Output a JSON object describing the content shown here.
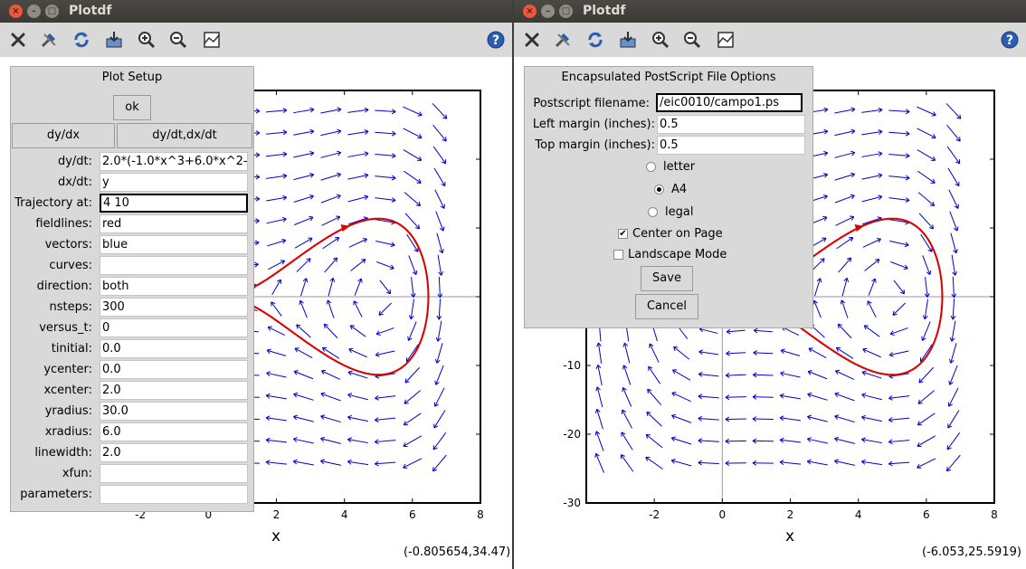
{
  "left_window": {
    "title": "Plotdf",
    "coords": "(-0.805654,34.47)",
    "xlabel": "x",
    "x_ticks": [
      "-2",
      "0",
      "2",
      "4",
      "6",
      "8"
    ],
    "setup": {
      "title": "Plot Setup",
      "ok_label": "ok",
      "tab_dydx": "dy/dx",
      "tab_dydt": "dy/dt,dx/dt",
      "rows": [
        {
          "label": "dy/dt:",
          "value": "2.0*(-1.0*x^3+6.0*x^2-"
        },
        {
          "label": "dx/dt:",
          "value": "y"
        },
        {
          "label": "Trajectory at:",
          "value": "4  10"
        },
        {
          "label": "fieldlines:",
          "value": "red"
        },
        {
          "label": "vectors:",
          "value": "blue"
        },
        {
          "label": "curves:",
          "value": ""
        },
        {
          "label": "direction:",
          "value": "both"
        },
        {
          "label": "nsteps:",
          "value": "300"
        },
        {
          "label": "versus_t:",
          "value": "0"
        },
        {
          "label": "tinitial:",
          "value": "0.0"
        },
        {
          "label": "ycenter:",
          "value": "0.0"
        },
        {
          "label": "xcenter:",
          "value": "2.0"
        },
        {
          "label": "yradius:",
          "value": "30.0"
        },
        {
          "label": "xradius:",
          "value": "6.0"
        },
        {
          "label": "linewidth:",
          "value": "2.0"
        },
        {
          "label": "xfun:",
          "value": ""
        },
        {
          "label": "parameters:",
          "value": ""
        }
      ]
    }
  },
  "right_window": {
    "title": "Plotdf",
    "coords": "(-6.053,25.5919)",
    "xlabel": "x",
    "x_ticks": [
      "-2",
      "0",
      "2",
      "4",
      "6",
      "8"
    ],
    "y_ticks": [
      "-10",
      "-20",
      "-30"
    ],
    "eps": {
      "title": "Encapsulated PostScript File Options",
      "filename_label": "Postscript filename:",
      "filename_value": "/eic0010/campo1.ps",
      "left_margin_label": "Left margin (inches):",
      "left_margin_value": "0.5",
      "top_margin_label": "Top margin (inches):",
      "top_margin_value": "0.5",
      "paper_options": [
        "letter",
        "A4",
        "legal"
      ],
      "paper_selected": "A4",
      "center_label": "Center on Page",
      "center_checked": true,
      "landscape_label": "Landscape Mode",
      "landscape_checked": false,
      "save_label": "Save",
      "cancel_label": "Cancel"
    }
  },
  "colors": {
    "vectors": "#0000cc",
    "trajectory": "#dd0000",
    "toolbar_icon": "#2a5db0"
  },
  "toolbar_icons": [
    "close-icon",
    "tools-icon",
    "refresh-icon",
    "save-icon",
    "zoom-in-icon",
    "zoom-out-icon",
    "plot-icon",
    "help-icon"
  ]
}
